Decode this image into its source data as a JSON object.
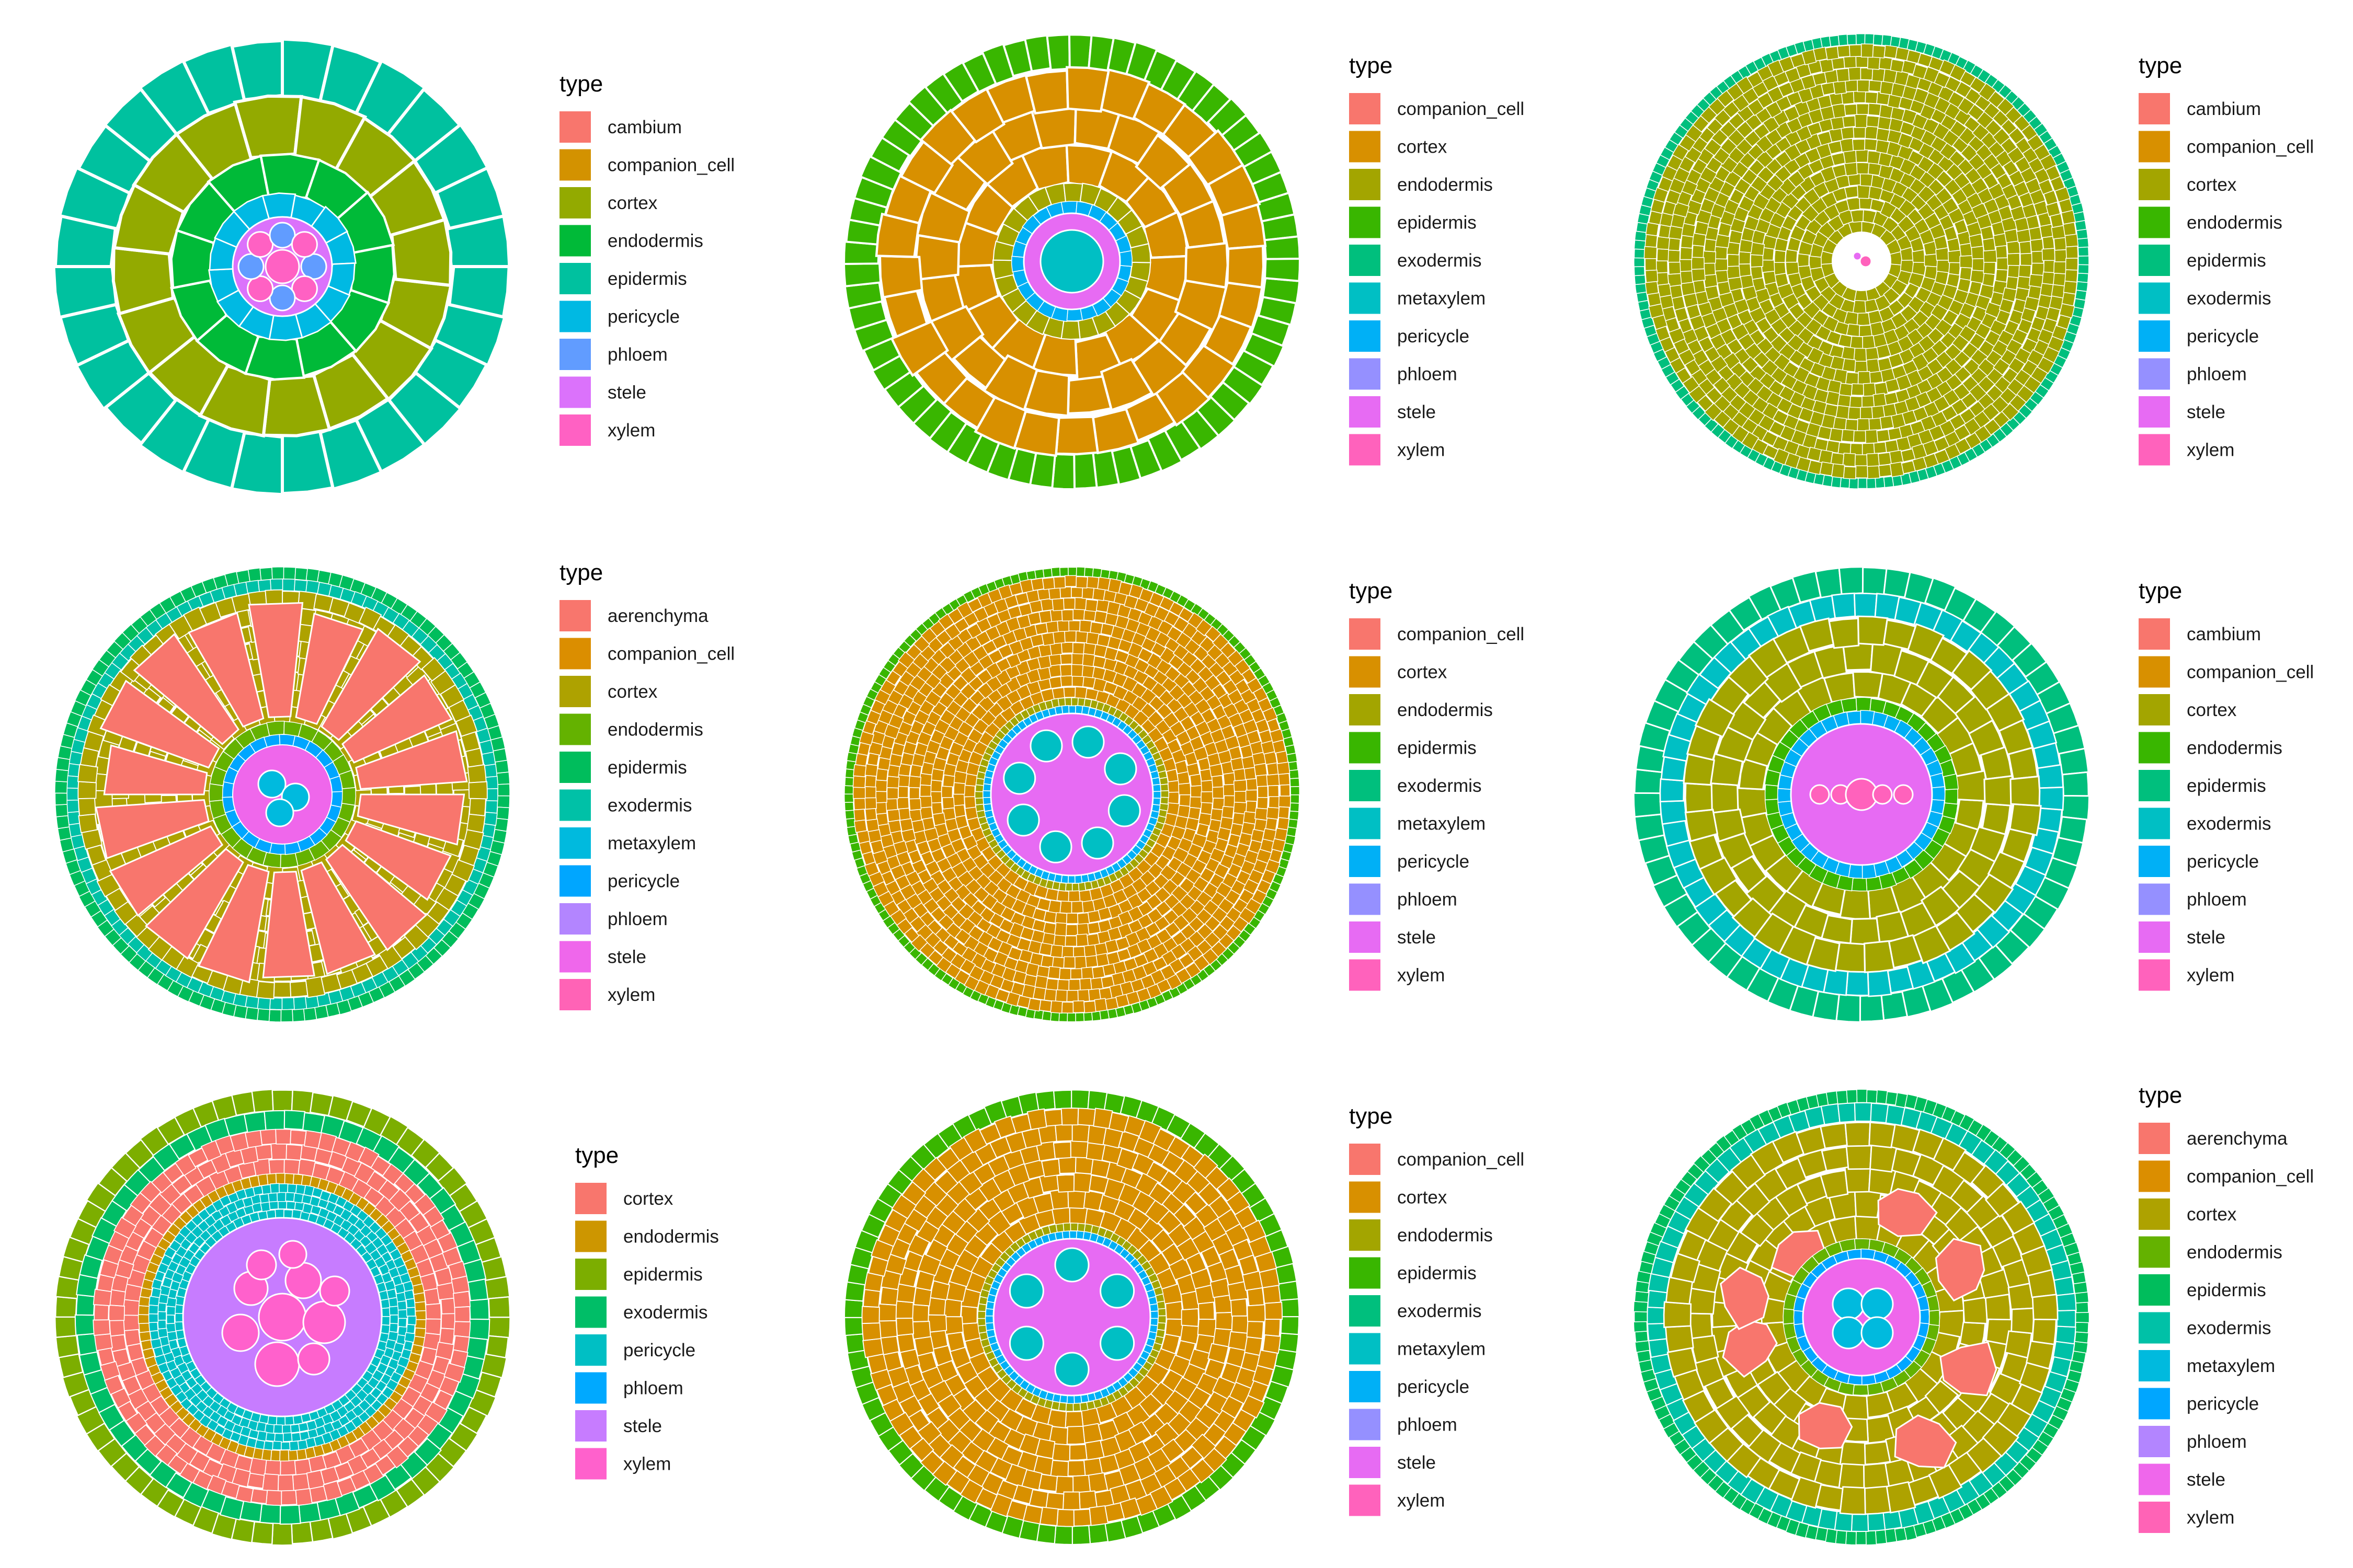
{
  "figure": {
    "panels": [
      {
        "id": "p1",
        "layers": [
          "epidermis",
          "cortex",
          "endodermis",
          "pericycle",
          "stele"
        ],
        "stele_inclusions": "p1",
        "legend": {
          "title": "type",
          "items": [
            "cambium",
            "companion_cell",
            "cortex",
            "endodermis",
            "epidermis",
            "pericycle",
            "phloem",
            "stele",
            "xylem"
          ]
        }
      },
      {
        "id": "p2",
        "layers": [
          "epidermis",
          "cortex",
          "endodermis",
          "pericycle",
          "metaxylem"
        ],
        "legend": {
          "title": "type",
          "items": [
            "companion_cell",
            "cortex",
            "endodermis",
            "epidermis",
            "exodermis",
            "metaxylem",
            "pericycle",
            "phloem",
            "stele",
            "xylem"
          ]
        }
      },
      {
        "id": "p3",
        "layers": [
          "epidermis",
          "cortex",
          "stele"
        ],
        "legend": {
          "title": "type",
          "items": [
            "cambium",
            "companion_cell",
            "cortex",
            "endodermis",
            "epidermis",
            "exodermis",
            "pericycle",
            "phloem",
            "stele",
            "xylem"
          ]
        }
      },
      {
        "id": "p4",
        "layers": [
          "epidermis",
          "exodermis",
          "cortex",
          "aerenchyma",
          "endodermis",
          "pericycle",
          "stele"
        ],
        "legend": {
          "title": "type",
          "items": [
            "aerenchyma",
            "companion_cell",
            "cortex",
            "endodermis",
            "epidermis",
            "exodermis",
            "metaxylem",
            "pericycle",
            "phloem",
            "stele",
            "xylem"
          ]
        }
      },
      {
        "id": "p5",
        "layers": [
          "epidermis",
          "cortex",
          "endodermis",
          "pericycle",
          "stele"
        ],
        "legend": {
          "title": "type",
          "items": [
            "companion_cell",
            "cortex",
            "endodermis",
            "epidermis",
            "exodermis",
            "metaxylem",
            "pericycle",
            "phloem",
            "stele",
            "xylem"
          ]
        }
      },
      {
        "id": "p6",
        "layers": [
          "epidermis",
          "exodermis",
          "cortex",
          "endodermis",
          "pericycle",
          "stele"
        ],
        "legend": {
          "title": "type",
          "items": [
            "cambium",
            "companion_cell",
            "cortex",
            "endodermis",
            "epidermis",
            "exodermis",
            "pericycle",
            "phloem",
            "stele",
            "xylem"
          ]
        }
      },
      {
        "id": "p7",
        "layers": [
          "epidermis",
          "exodermis",
          "cortex",
          "endodermis",
          "pericycle",
          "stele"
        ],
        "legend": {
          "title": "type",
          "items": [
            "cortex",
            "endodermis",
            "epidermis",
            "exodermis",
            "pericycle",
            "phloem",
            "stele",
            "xylem"
          ]
        }
      },
      {
        "id": "p8",
        "layers": [
          "epidermis",
          "cortex",
          "endodermis",
          "pericycle",
          "stele"
        ],
        "legend": {
          "title": "type",
          "items": [
            "companion_cell",
            "cortex",
            "endodermis",
            "epidermis",
            "exodermis",
            "metaxylem",
            "pericycle",
            "phloem",
            "stele",
            "xylem"
          ]
        }
      },
      {
        "id": "p9",
        "layers": [
          "epidermis",
          "exodermis",
          "cortex",
          "aerenchyma",
          "endodermis",
          "pericycle",
          "stele"
        ],
        "legend": {
          "title": "type",
          "items": [
            "aerenchyma",
            "companion_cell",
            "cortex",
            "endodermis",
            "epidermis",
            "exodermis",
            "metaxylem",
            "pericycle",
            "phloem",
            "stele",
            "xylem"
          ]
        }
      }
    ]
  }
}
